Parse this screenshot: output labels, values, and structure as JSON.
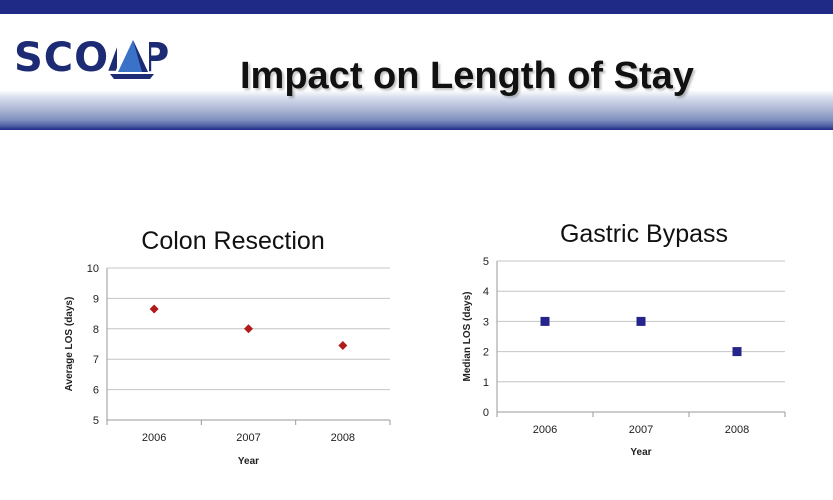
{
  "slide": {
    "title": "Impact on Length of Stay",
    "logo_text": "SCOAP",
    "colors": {
      "band": "#1f2a86",
      "logo": "#1c2b73",
      "logo_accent": "#3a72c8"
    }
  },
  "chart_data": [
    {
      "type": "scatter",
      "title": "Colon Resection",
      "xlabel": "Year",
      "ylabel": "Average LOS (days)",
      "categories": [
        "2006",
        "2007",
        "2008"
      ],
      "series": [
        {
          "values": [
            8.65,
            8.0,
            7.45
          ]
        }
      ],
      "ylim": [
        5,
        10
      ],
      "yticks": [
        5,
        6,
        7,
        8,
        9,
        10
      ],
      "grid": true,
      "marker": "diamond",
      "color": "#b01c1c"
    },
    {
      "type": "scatter",
      "title": "Gastric Bypass",
      "xlabel": "Year",
      "ylabel": "Median LOS (days)",
      "categories": [
        "2006",
        "2007",
        "2008"
      ],
      "series": [
        {
          "values": [
            3,
            3,
            2
          ]
        }
      ],
      "ylim": [
        0,
        5
      ],
      "yticks": [
        0,
        1,
        2,
        3,
        4,
        5
      ],
      "grid": true,
      "marker": "square",
      "color": "#24248a"
    }
  ]
}
